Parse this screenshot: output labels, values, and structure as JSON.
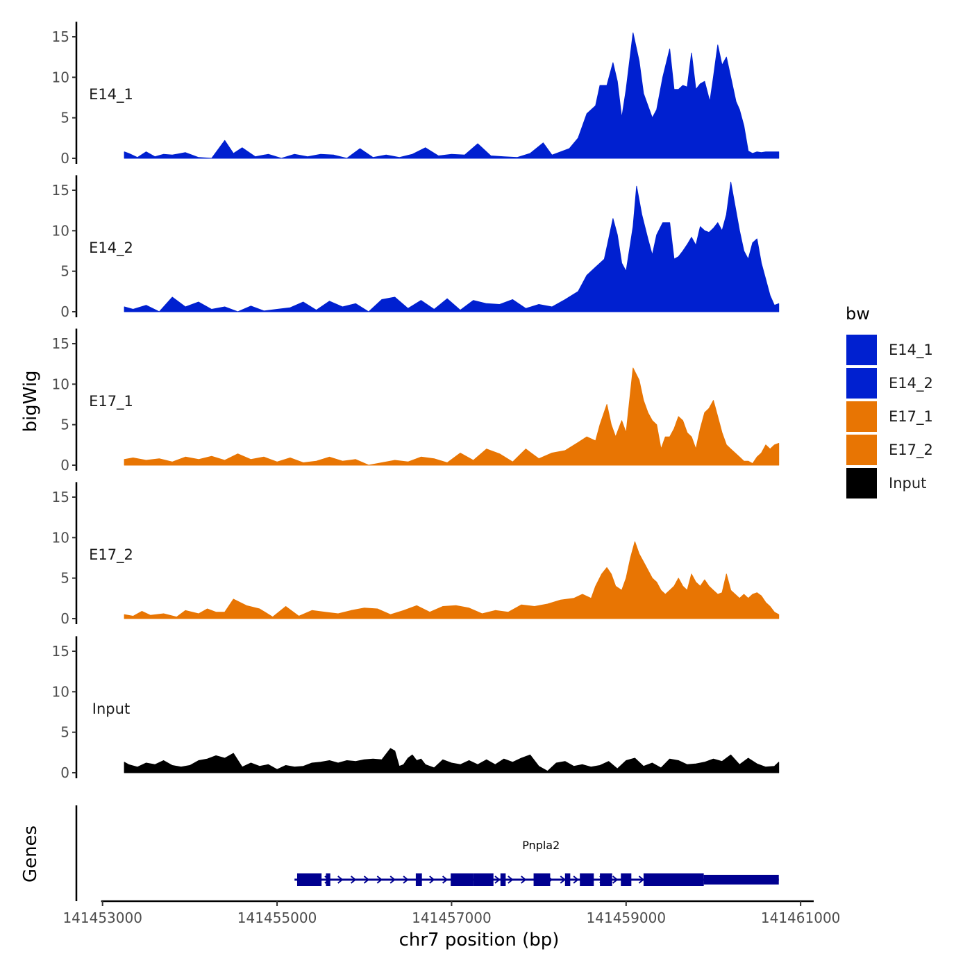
{
  "chart_data": {
    "type": "area",
    "title": "",
    "xlabel": "chr7 position (bp)",
    "ylabel": "bigWig",
    "genes_label": "Genes",
    "xlim": [
      141452700,
      141461150
    ],
    "ylim": [
      0,
      16
    ],
    "x_ticks": [
      141453000,
      141455000,
      141457000,
      141459000,
      141461000
    ],
    "x_tick_labels": [
      "141453000",
      "141455000",
      "141457000",
      "141459000",
      "141461000"
    ],
    "y_ticks": [
      0,
      5,
      10,
      15
    ],
    "y_tick_labels": [
      "0",
      "5",
      "10",
      "15"
    ],
    "legend": {
      "title": "bw",
      "entries": [
        {
          "label": "E14_1",
          "color": "#0020D0"
        },
        {
          "label": "E14_2",
          "color": "#0020D0"
        },
        {
          "label": "E17_1",
          "color": "#E87503"
        },
        {
          "label": "E17_2",
          "color": "#E87503"
        },
        {
          "label": "Input",
          "color": "#000000"
        }
      ]
    },
    "series": [
      {
        "name": "E14_1",
        "color": "#0020D0",
        "x": [
          141453250,
          141453300,
          141453400,
          141453500,
          141453600,
          141453700,
          141453800,
          141453950,
          141454100,
          141454250,
          141454400,
          141454500,
          141454600,
          141454750,
          141454900,
          141455050,
          141455200,
          141455350,
          141455500,
          141455650,
          141455800,
          141455950,
          141456100,
          141456250,
          141456400,
          141456550,
          141456700,
          141456850,
          141457000,
          141457150,
          141457300,
          141457450,
          141457600,
          141457750,
          141457900,
          141458050,
          141458150,
          141458250,
          141458350,
          141458450,
          141458550,
          141458600,
          141458650,
          141458700,
          141458780,
          141458850,
          141458900,
          141458950,
          141459000,
          141459080,
          141459150,
          141459200,
          141459250,
          141459300,
          141459350,
          141459420,
          141459500,
          141459550,
          141459600,
          141459650,
          141459700,
          141459750,
          141459800,
          141459850,
          141459900,
          141459960,
          141460000,
          141460050,
          141460100,
          141460150,
          141460200,
          141460260,
          141460300,
          141460350,
          141460400,
          141460450,
          141460500,
          141460550,
          141460600,
          141460650,
          141460700,
          141460750
        ],
        "y": [
          0.8,
          0.6,
          0.1,
          0.8,
          0.2,
          0.5,
          0.4,
          0.7,
          0.1,
          0.0,
          2.2,
          0.6,
          1.3,
          0.2,
          0.5,
          0.0,
          0.5,
          0.2,
          0.5,
          0.4,
          0.0,
          1.2,
          0.1,
          0.4,
          0.1,
          0.5,
          1.3,
          0.3,
          0.5,
          0.4,
          1.8,
          0.3,
          0.2,
          0.1,
          0.6,
          1.9,
          0.4,
          0.8,
          1.2,
          2.5,
          5.5,
          6.0,
          6.5,
          9.0,
          9.0,
          11.8,
          9.5,
          5.0,
          8.5,
          15.5,
          12.0,
          8.0,
          6.5,
          5.0,
          6.0,
          10.0,
          13.5,
          8.5,
          8.5,
          9.0,
          8.8,
          13.0,
          8.5,
          9.2,
          9.5,
          7.0,
          10.0,
          14.0,
          11.5,
          12.5,
          10.0,
          7.0,
          6.0,
          4.0,
          0.9,
          0.6,
          0.8,
          0.7,
          0.8,
          0.8,
          0.8,
          0.8
        ]
      },
      {
        "name": "E14_2",
        "color": "#0020D0",
        "x": [
          141453250,
          141453350,
          141453500,
          141453650,
          141453800,
          141453950,
          141454100,
          141454250,
          141454400,
          141454550,
          141454700,
          141454850,
          141455000,
          141455150,
          141455300,
          141455450,
          141455600,
          141455750,
          141455900,
          141456050,
          141456200,
          141456350,
          141456500,
          141456650,
          141456800,
          141456950,
          141457100,
          141457250,
          141457400,
          141457550,
          141457700,
          141457850,
          141458000,
          141458150,
          141458300,
          141458450,
          141458550,
          141458650,
          141458750,
          141458800,
          141458850,
          141458900,
          141458950,
          141459000,
          141459080,
          141459120,
          141459180,
          141459250,
          141459300,
          141459350,
          141459420,
          141459500,
          141459550,
          141459600,
          141459650,
          141459700,
          141459750,
          141459800,
          141459850,
          141459900,
          141459950,
          141460000,
          141460050,
          141460100,
          141460150,
          141460200,
          141460250,
          141460300,
          141460350,
          141460400,
          141460450,
          141460500,
          141460550,
          141460600,
          141460650,
          141460700,
          141460750
        ],
        "y": [
          0.6,
          0.3,
          0.8,
          0.0,
          1.8,
          0.6,
          1.2,
          0.3,
          0.6,
          0.0,
          0.7,
          0.1,
          0.3,
          0.5,
          1.2,
          0.2,
          1.3,
          0.6,
          1.0,
          0.0,
          1.5,
          1.8,
          0.4,
          1.4,
          0.3,
          1.6,
          0.2,
          1.4,
          1.0,
          0.9,
          1.5,
          0.4,
          0.9,
          0.6,
          1.5,
          2.5,
          4.5,
          5.5,
          6.5,
          9.0,
          11.5,
          9.5,
          6.0,
          5.0,
          10.5,
          15.5,
          12.0,
          9.0,
          7.0,
          9.5,
          11.0,
          11.0,
          6.5,
          6.8,
          7.5,
          8.3,
          9.2,
          8.2,
          10.5,
          10.0,
          9.8,
          10.3,
          11.0,
          10.0,
          12.0,
          16.0,
          13.0,
          10.0,
          7.5,
          6.5,
          8.5,
          9.0,
          6.0,
          4.0,
          2.0,
          0.8,
          1.0
        ]
      },
      {
        "name": "E17_1",
        "color": "#E87503",
        "x": [
          141453250,
          141453350,
          141453500,
          141453650,
          141453800,
          141453950,
          141454100,
          141454250,
          141454400,
          141454550,
          141454700,
          141454850,
          141455000,
          141455150,
          141455300,
          141455450,
          141455600,
          141455750,
          141455900,
          141456050,
          141456200,
          141456350,
          141456500,
          141456650,
          141456800,
          141456950,
          141457100,
          141457250,
          141457400,
          141457550,
          141457700,
          141457850,
          141458000,
          141458150,
          141458300,
          141458450,
          141458550,
          141458650,
          141458700,
          141458780,
          141458830,
          141458880,
          141458950,
          141459000,
          141459080,
          141459150,
          141459200,
          141459250,
          141459300,
          141459350,
          141459400,
          141459450,
          141459500,
          141459550,
          141459600,
          141459650,
          141459700,
          141459750,
          141459800,
          141459850,
          141459900,
          141459950,
          141460000,
          141460050,
          141460100,
          141460150,
          141460200,
          141460250,
          141460300,
          141460350,
          141460400,
          141460450,
          141460500,
          141460550,
          141460600,
          141460650,
          141460700,
          141460750
        ],
        "y": [
          0.7,
          0.9,
          0.6,
          0.8,
          0.4,
          1.0,
          0.7,
          1.1,
          0.6,
          1.4,
          0.7,
          1.0,
          0.4,
          0.9,
          0.3,
          0.5,
          1.0,
          0.5,
          0.7,
          0.0,
          0.3,
          0.6,
          0.4,
          1.0,
          0.8,
          0.3,
          1.5,
          0.6,
          2.0,
          1.4,
          0.4,
          2.0,
          0.8,
          1.5,
          1.8,
          2.8,
          3.5,
          3.0,
          5.0,
          7.5,
          5.0,
          3.5,
          5.5,
          4.0,
          12.0,
          10.5,
          8.0,
          6.5,
          5.5,
          5.0,
          2.0,
          3.5,
          3.5,
          4.5,
          6.0,
          5.5,
          4.0,
          3.5,
          2.0,
          4.5,
          6.5,
          7.0,
          8.0,
          6.0,
          4.0,
          2.5,
          2.0,
          1.5,
          1.0,
          0.5,
          0.5,
          0.2,
          1.0,
          1.5,
          2.5,
          2.0,
          2.5,
          2.7
        ]
      },
      {
        "name": "E17_2",
        "color": "#E87503",
        "x": [
          141453250,
          141453350,
          141453450,
          141453550,
          141453700,
          141453850,
          141453950,
          141454100,
          141454200,
          141454300,
          141454400,
          141454500,
          141454650,
          141454800,
          141454950,
          141455100,
          141455250,
          141455400,
          141455550,
          141455700,
          141455850,
          141456000,
          141456150,
          141456300,
          141456450,
          141456600,
          141456750,
          141456900,
          141457050,
          141457200,
          141457350,
          141457500,
          141457650,
          141457800,
          141457950,
          141458100,
          141458250,
          141458400,
          141458500,
          141458600,
          141458650,
          141458720,
          141458780,
          141458830,
          141458880,
          141458950,
          141459000,
          141459050,
          141459100,
          141459150,
          141459200,
          141459250,
          141459300,
          141459350,
          141459400,
          141459450,
          141459500,
          141459550,
          141459600,
          141459650,
          141459700,
          141459750,
          141459800,
          141459850,
          141459900,
          141459950,
          141460000,
          141460050,
          141460100,
          141460150,
          141460200,
          141460250,
          141460300,
          141460350,
          141460400,
          141460450,
          141460500,
          141460550,
          141460600,
          141460650,
          141460700,
          141460750
        ],
        "y": [
          0.5,
          0.3,
          0.9,
          0.4,
          0.6,
          0.2,
          1.0,
          0.6,
          1.2,
          0.8,
          0.8,
          2.4,
          1.6,
          1.2,
          0.2,
          1.5,
          0.3,
          1.0,
          0.8,
          0.6,
          1.0,
          1.3,
          1.2,
          0.5,
          1.0,
          1.6,
          0.8,
          1.5,
          1.6,
          1.3,
          0.6,
          1.0,
          0.8,
          1.7,
          1.5,
          1.8,
          2.3,
          2.5,
          3.0,
          2.5,
          4.0,
          5.5,
          6.3,
          5.5,
          4.0,
          3.5,
          5.0,
          7.5,
          9.5,
          8.0,
          7.0,
          6.0,
          5.0,
          4.5,
          3.5,
          3.0,
          3.5,
          4.0,
          5.0,
          4.0,
          3.5,
          5.5,
          4.5,
          4.0,
          4.8,
          4.0,
          3.5,
          3.0,
          3.2,
          5.5,
          3.5,
          3.0,
          2.5,
          3.0,
          2.5,
          3.0,
          3.2,
          2.8,
          2.0,
          1.5,
          0.8,
          0.5
        ]
      },
      {
        "name": "Input",
        "color": "#000000",
        "x": [
          141453250,
          141453300,
          141453400,
          141453500,
          141453600,
          141453700,
          141453800,
          141453900,
          141454000,
          141454100,
          141454200,
          141454300,
          141454400,
          141454500,
          141454600,
          141454700,
          141454800,
          141454900,
          141455000,
          141455100,
          141455200,
          141455300,
          141455400,
          141455500,
          141455600,
          141455700,
          141455800,
          141455900,
          141456000,
          141456100,
          141456200,
          141456300,
          141456350,
          141456400,
          141456450,
          141456500,
          141456550,
          141456600,
          141456650,
          141456700,
          141456800,
          141456900,
          141457000,
          141457100,
          141457200,
          141457300,
          141457400,
          141457500,
          141457600,
          141457700,
          141457800,
          141457900,
          141458000,
          141458100,
          141458200,
          141458300,
          141458400,
          141458500,
          141458600,
          141458700,
          141458800,
          141458900,
          141459000,
          141459100,
          141459200,
          141459300,
          141459400,
          141459500,
          141459600,
          141459700,
          141459800,
          141459900,
          141460000,
          141460100,
          141460200,
          141460300,
          141460400,
          141460500,
          141460600,
          141460700,
          141460750
        ],
        "y": [
          1.3,
          1.0,
          0.7,
          1.2,
          1.0,
          1.5,
          0.9,
          0.7,
          0.9,
          1.5,
          1.7,
          2.1,
          1.8,
          2.4,
          0.7,
          1.2,
          0.8,
          1.0,
          0.4,
          0.9,
          0.7,
          0.8,
          1.2,
          1.3,
          1.5,
          1.2,
          1.5,
          1.4,
          1.6,
          1.7,
          1.6,
          3.0,
          2.7,
          0.8,
          1.0,
          1.8,
          2.2,
          1.5,
          1.7,
          1.0,
          0.6,
          1.6,
          1.2,
          1.0,
          1.5,
          1.0,
          1.6,
          1.0,
          1.7,
          1.3,
          1.8,
          2.2,
          0.8,
          0.2,
          1.2,
          1.4,
          0.8,
          1.0,
          0.7,
          0.9,
          1.4,
          0.5,
          1.5,
          1.8,
          0.8,
          1.2,
          0.6,
          1.7,
          1.5,
          1.0,
          1.1,
          1.3,
          1.7,
          1.4,
          2.2,
          1.0,
          1.8,
          1.1,
          0.7,
          0.8,
          1.3
        ]
      }
    ],
    "gene": {
      "name": "Pnpla2",
      "color": "#000090",
      "start": 141455200,
      "end": 141460750,
      "strand": "+",
      "exons": [
        {
          "start": 141455230,
          "end": 141455510,
          "thick": true
        },
        {
          "start": 141455560,
          "end": 141455610,
          "thick": true
        },
        {
          "start": 141456590,
          "end": 141456660,
          "thick": true
        },
        {
          "start": 141456990,
          "end": 141457250,
          "thick": true
        },
        {
          "start": 141457250,
          "end": 141457480,
          "thick": true
        },
        {
          "start": 141457560,
          "end": 141457620,
          "thick": true
        },
        {
          "start": 141457940,
          "end": 141458130,
          "thick": true
        },
        {
          "start": 141458300,
          "end": 141458360,
          "thick": true
        },
        {
          "start": 141458470,
          "end": 141458630,
          "thick": true
        },
        {
          "start": 141458700,
          "end": 141458840,
          "thick": true
        },
        {
          "start": 141458940,
          "end": 141459060,
          "thick": true
        },
        {
          "start": 141459200,
          "end": 141459890,
          "thick": true
        },
        {
          "start": 141459890,
          "end": 141460750,
          "thick": false
        }
      ]
    }
  }
}
